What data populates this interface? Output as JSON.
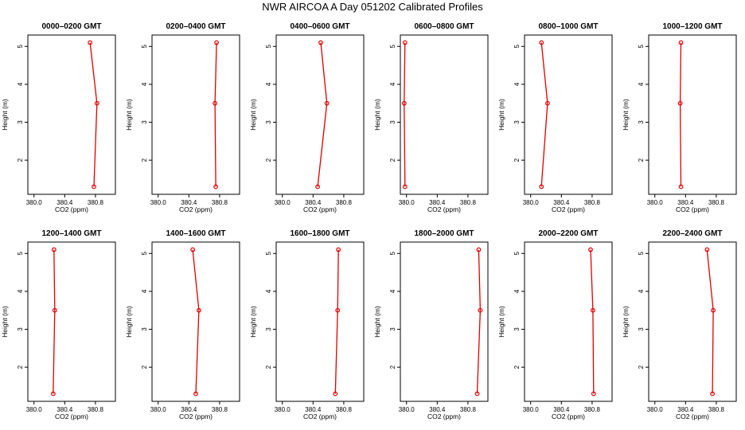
{
  "figure": {
    "title": "NWR AIRCOA A  Day 051202  Calibrated Profiles"
  },
  "colors": {
    "series": "#e00000",
    "axis": "#000000"
  },
  "chart_data": [
    {
      "type": "line",
      "title": "0000–0200 GMT",
      "xlabel": "CO2 (ppm)",
      "ylabel": "Height (m)",
      "xlim": [
        379.92,
        381.06
      ],
      "ylim": [
        1.1,
        5.3
      ],
      "xticks": [
        "380.0",
        "380.4",
        "380.8"
      ],
      "yticks": [
        "2",
        "3",
        "4",
        "5"
      ],
      "x": [
        380.73,
        380.82,
        380.78
      ],
      "y": [
        5.1,
        3.5,
        1.3
      ]
    },
    {
      "type": "line",
      "title": "0200–0400 GMT",
      "xlabel": "CO2 (ppm)",
      "ylabel": "Height (m)",
      "xlim": [
        379.92,
        381.06
      ],
      "ylim": [
        1.1,
        5.3
      ],
      "xticks": [
        "380.0",
        "380.4",
        "380.8"
      ],
      "yticks": [
        "2",
        "3",
        "4",
        "5"
      ],
      "x": [
        380.76,
        380.74,
        380.75
      ],
      "y": [
        5.1,
        3.5,
        1.3
      ]
    },
    {
      "type": "line",
      "title": "0400–0600 GMT",
      "xlabel": "CO2 (ppm)",
      "ylabel": "Height (m)",
      "xlim": [
        379.92,
        381.06
      ],
      "ylim": [
        1.1,
        5.3
      ],
      "xticks": [
        "380.0",
        "380.4",
        "380.8"
      ],
      "yticks": [
        "2",
        "3",
        "4",
        "5"
      ],
      "x": [
        380.5,
        380.58,
        380.46
      ],
      "y": [
        5.1,
        3.5,
        1.3
      ]
    },
    {
      "type": "line",
      "title": "0600–0800 GMT",
      "xlabel": "CO2 (ppm)",
      "ylabel": "Height (m)",
      "xlim": [
        379.92,
        381.06
      ],
      "ylim": [
        1.1,
        5.3
      ],
      "xticks": [
        "380.0",
        "380.4",
        "380.8"
      ],
      "yticks": [
        "2",
        "3",
        "4",
        "5"
      ],
      "x": [
        379.98,
        379.97,
        379.98
      ],
      "y": [
        5.1,
        3.5,
        1.3
      ]
    },
    {
      "type": "line",
      "title": "0800–1000 GMT",
      "xlabel": "CO2 (ppm)",
      "ylabel": "Height (m)",
      "xlim": [
        379.92,
        381.06
      ],
      "ylim": [
        1.1,
        5.3
      ],
      "xticks": [
        "380.0",
        "380.4",
        "380.8"
      ],
      "yticks": [
        "2",
        "3",
        "4",
        "5"
      ],
      "x": [
        380.14,
        380.22,
        380.14
      ],
      "y": [
        5.1,
        3.5,
        1.3
      ]
    },
    {
      "type": "line",
      "title": "1000–1200 GMT",
      "xlabel": "CO2 (ppm)",
      "ylabel": "Height (m)",
      "xlim": [
        379.92,
        381.06
      ],
      "ylim": [
        1.1,
        5.3
      ],
      "xticks": [
        "380.0",
        "380.4",
        "380.8"
      ],
      "yticks": [
        "2",
        "3",
        "4",
        "5"
      ],
      "x": [
        380.34,
        380.33,
        380.34
      ],
      "y": [
        5.1,
        3.5,
        1.3
      ]
    },
    {
      "type": "line",
      "title": "1200–1400 GMT",
      "xlabel": "CO2 (ppm)",
      "ylabel": "Height (m)",
      "xlim": [
        379.92,
        381.06
      ],
      "ylim": [
        1.1,
        5.3
      ],
      "xticks": [
        "380.0",
        "380.4",
        "380.8"
      ],
      "yticks": [
        "2",
        "3",
        "4",
        "5"
      ],
      "x": [
        380.26,
        380.27,
        380.25
      ],
      "y": [
        5.1,
        3.5,
        1.3
      ]
    },
    {
      "type": "line",
      "title": "1400–1600 GMT",
      "xlabel": "CO2 (ppm)",
      "ylabel": "Height (m)",
      "xlim": [
        379.92,
        381.06
      ],
      "ylim": [
        1.1,
        5.3
      ],
      "xticks": [
        "380.0",
        "380.4",
        "380.8"
      ],
      "yticks": [
        "2",
        "3",
        "4",
        "5"
      ],
      "x": [
        380.45,
        380.53,
        380.49
      ],
      "y": [
        5.1,
        3.5,
        1.3
      ]
    },
    {
      "type": "line",
      "title": "1600–1800 GMT",
      "xlabel": "CO2 (ppm)",
      "ylabel": "Height (m)",
      "xlim": [
        379.92,
        381.06
      ],
      "ylim": [
        1.1,
        5.3
      ],
      "xticks": [
        "380.0",
        "380.4",
        "380.8"
      ],
      "yticks": [
        "2",
        "3",
        "4",
        "5"
      ],
      "x": [
        380.73,
        380.72,
        380.69
      ],
      "y": [
        5.1,
        3.5,
        1.3
      ]
    },
    {
      "type": "line",
      "title": "1800–2000 GMT",
      "xlabel": "CO2 (ppm)",
      "ylabel": "Height (m)",
      "xlim": [
        379.92,
        381.06
      ],
      "ylim": [
        1.1,
        5.3
      ],
      "xticks": [
        "380.0",
        "380.4",
        "380.8"
      ],
      "yticks": [
        "2",
        "3",
        "4",
        "5"
      ],
      "x": [
        380.94,
        380.96,
        380.92
      ],
      "y": [
        5.1,
        3.5,
        1.3
      ]
    },
    {
      "type": "line",
      "title": "2000–2200 GMT",
      "xlabel": "CO2 (ppm)",
      "ylabel": "Height (m)",
      "xlim": [
        379.92,
        381.06
      ],
      "ylim": [
        1.1,
        5.3
      ],
      "xticks": [
        "380.0",
        "380.4",
        "380.8"
      ],
      "yticks": [
        "2",
        "3",
        "4",
        "5"
      ],
      "x": [
        380.78,
        380.81,
        380.82
      ],
      "y": [
        5.1,
        3.5,
        1.3
      ]
    },
    {
      "type": "line",
      "title": "2200–2400 GMT",
      "xlabel": "CO2 (ppm)",
      "ylabel": "Height (m)",
      "xlim": [
        379.92,
        381.06
      ],
      "ylim": [
        1.1,
        5.3
      ],
      "xticks": [
        "380.0",
        "380.4",
        "380.8"
      ],
      "yticks": [
        "2",
        "3",
        "4",
        "5"
      ],
      "x": [
        380.68,
        380.76,
        380.75
      ],
      "y": [
        5.1,
        3.5,
        1.3
      ]
    }
  ]
}
